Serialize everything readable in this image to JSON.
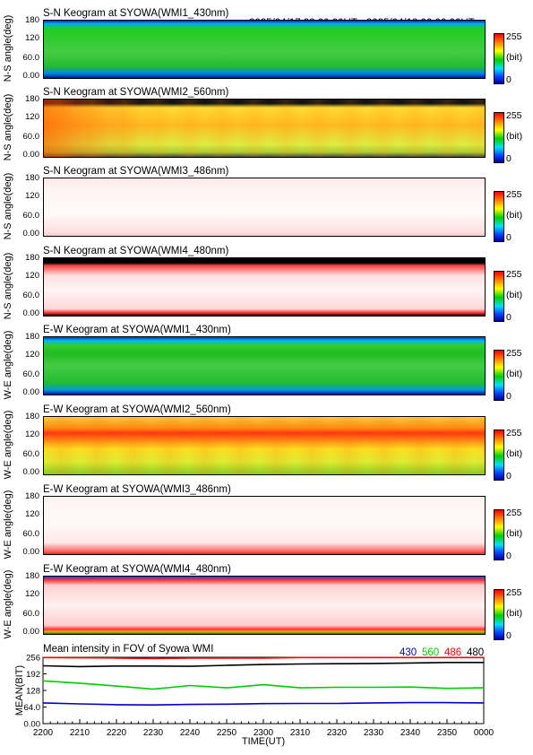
{
  "date_range": "2025/04/17 22:00:00UT - 2025/04/18 00:00:00UT",
  "colorbar": {
    "max_label": "255",
    "unit_label": "(bit)",
    "min_label": "0"
  },
  "keograms": [
    {
      "title": "S-N Keogram at SYOWA(WMI1_430nm)",
      "ylabel": "N-S angle(deg)",
      "yticks": [
        "180",
        "120",
        "60.0",
        "0.00"
      ]
    },
    {
      "title": "S-N Keogram at SYOWA(WMI2_560nm)",
      "ylabel": "N-S angle(deg)",
      "yticks": [
        "180",
        "120",
        "60.0",
        "0.00"
      ]
    },
    {
      "title": "S-N Keogram at SYOWA(WMI3_486nm)",
      "ylabel": "N-S angle(deg)",
      "yticks": [
        "180",
        "120",
        "60.0",
        "0.00"
      ]
    },
    {
      "title": "S-N Keogram at SYOWA(WMI4_480nm)",
      "ylabel": "N-S angle(deg)",
      "yticks": [
        "180",
        "120",
        "60.0",
        "0.00"
      ]
    },
    {
      "title": "E-W Keogram at SYOWA(WMI1_430nm)",
      "ylabel": "W-E angle(deg)",
      "yticks": [
        "180",
        "120",
        "60.0",
        "0.00"
      ]
    },
    {
      "title": "E-W Keogram at SYOWA(WMI2_560nm)",
      "ylabel": "W-E angle(deg)",
      "yticks": [
        "180",
        "120",
        "60.0",
        "0.00"
      ]
    },
    {
      "title": "E-W Keogram at SYOWA(WMI3_486nm)",
      "ylabel": "W-E angle(deg)",
      "yticks": [
        "180",
        "120",
        "60.0",
        "0.00"
      ]
    },
    {
      "title": "E-W Keogram at SYOWA(WMI4_480nm)",
      "ylabel": "W-E angle(deg)",
      "yticks": [
        "180",
        "120",
        "60.0",
        "0.00"
      ]
    }
  ],
  "chart_data": {
    "type": "line",
    "title": "Mean intensity in FOV of Syowa WMI",
    "xlabel": "TIME(UT)",
    "ylabel": "MEAN(BIT)",
    "ylim": [
      0,
      256
    ],
    "yticks": [
      "256",
      "192",
      "128",
      "64.0",
      "0.00"
    ],
    "x": [
      "2200",
      "2210",
      "2220",
      "2230",
      "2240",
      "2250",
      "2300",
      "2310",
      "2320",
      "2330",
      "2340",
      "2350",
      "0000"
    ],
    "xtick_labels": [
      "2200",
      "2210",
      "2220",
      "2230",
      "2240",
      "2250",
      "2300",
      "2310",
      "2320",
      "2330",
      "2340",
      "2350",
      "0000"
    ],
    "series": [
      {
        "name": "430",
        "color": "#0000cc",
        "values": [
          80,
          76,
          73,
          72,
          74,
          75,
          77,
          78,
          78,
          80,
          81,
          81,
          80
        ]
      },
      {
        "name": "560",
        "color": "#00cc00",
        "values": [
          165,
          156,
          145,
          133,
          147,
          138,
          150,
          138,
          140,
          140,
          141,
          136,
          138
        ]
      },
      {
        "name": "486",
        "color": "#ff0000",
        "values": [
          255,
          254,
          253,
          251,
          253,
          253,
          253,
          255,
          255,
          255,
          255,
          255,
          255
        ]
      },
      {
        "name": "480",
        "color": "#000000",
        "values": [
          223,
          220,
          222,
          222,
          221,
          225,
          228,
          230,
          231,
          232,
          234,
          236,
          236
        ]
      }
    ]
  }
}
